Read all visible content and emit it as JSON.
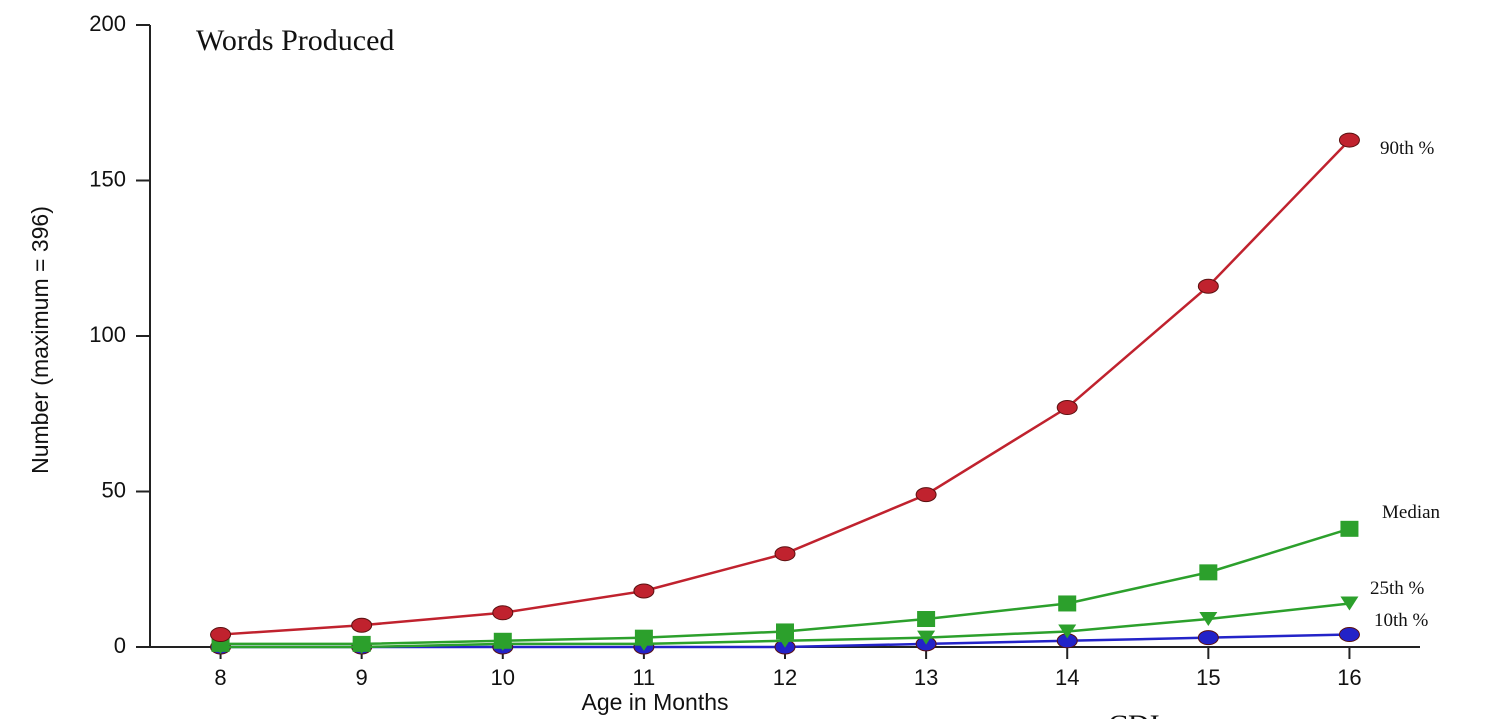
{
  "chart_data": {
    "type": "line",
    "title": "Words Produced",
    "xlabel": "Age in Months",
    "ylabel": "Number (maximum = 396)",
    "x": [
      8,
      9,
      10,
      11,
      12,
      13,
      14,
      15,
      16
    ],
    "xlim": [
      7.5,
      16.5
    ],
    "ylim": [
      0,
      200
    ],
    "yticks": [
      0,
      50,
      100,
      150,
      200
    ],
    "grid": false,
    "legend": "inline labels at line ends (right)",
    "series": [
      {
        "name": "90th %",
        "marker": "circle",
        "color": "#c0222e",
        "values": [
          4,
          7,
          11,
          18,
          30,
          49,
          77,
          116,
          163
        ]
      },
      {
        "name": "Median",
        "marker": "square",
        "color": "#2ca02c",
        "values": [
          1,
          1,
          2,
          3,
          5,
          9,
          14,
          24,
          38
        ]
      },
      {
        "name": "25th %",
        "marker": "triangle-down",
        "color": "#2ca02c",
        "values": [
          0,
          0,
          1,
          1,
          2,
          3,
          5,
          9,
          14
        ]
      },
      {
        "name": "10th %",
        "marker": "circle",
        "color": "#2323c8",
        "values": [
          0,
          0,
          0,
          0,
          0,
          1,
          2,
          3,
          4
        ]
      }
    ],
    "footer_text": "CDI"
  }
}
